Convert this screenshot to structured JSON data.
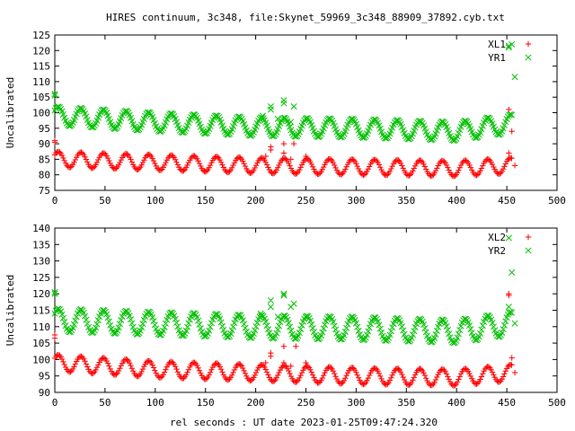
{
  "title": "HIRES continuum, 3c348, file:Skynet_59969_3c348_88909_37892.cyb.txt",
  "xlabel": "rel seconds : UT date 2023-01-25T09:47:24.320",
  "colors": {
    "red": "#ff0000",
    "green": "#00c000"
  },
  "chart_data": [
    {
      "type": "scatter",
      "ylabel": "Uncalibrated",
      "xlim": [
        0,
        500
      ],
      "ylim": [
        75,
        125
      ],
      "xticks": [
        0,
        50,
        100,
        150,
        200,
        250,
        300,
        350,
        400,
        450,
        500
      ],
      "yticks": [
        75,
        80,
        85,
        90,
        95,
        100,
        105,
        110,
        115,
        120,
        125
      ],
      "legend_position": "top-right",
      "series": [
        {
          "name": "XL1",
          "color": "#ff0000",
          "marker": "plus",
          "baseline": [
            [
              0,
              85
            ],
            [
              100,
              84
            ],
            [
              200,
              83
            ],
            [
              300,
              82.5
            ],
            [
              400,
              82
            ],
            [
              455,
              83
            ]
          ],
          "amplitude": 2.5,
          "period_s": 22.5,
          "spikes": [
            [
              0,
              90.5
            ],
            [
              0,
              91
            ],
            [
              210,
              86
            ],
            [
              215,
              88
            ],
            [
              215,
              89
            ],
            [
              228,
              90
            ],
            [
              228,
              87
            ],
            [
              235,
              85
            ],
            [
              238,
              90
            ],
            [
              250,
              86
            ],
            [
              452,
              101
            ],
            [
              452,
              87
            ],
            [
              455,
              94
            ],
            [
              458,
              83
            ]
          ]
        },
        {
          "name": "YR1",
          "color": "#00c000",
          "marker": "x",
          "baseline": [
            [
              0,
              99
            ],
            [
              100,
              97
            ],
            [
              200,
              95.5
            ],
            [
              300,
              95
            ],
            [
              400,
              94
            ],
            [
              455,
              96.5
            ]
          ],
          "amplitude": 3,
          "period_s": 22.5,
          "spikes": [
            [
              0,
              105.5
            ],
            [
              0,
              106
            ],
            [
              207,
              99
            ],
            [
              215,
              101
            ],
            [
              215,
              102
            ],
            [
              222,
              98
            ],
            [
              228,
              103
            ],
            [
              228,
              104
            ],
            [
              235,
              97
            ],
            [
              238,
              102
            ],
            [
              452,
              121
            ],
            [
              452,
              121.5
            ],
            [
              455,
              122
            ],
            [
              458,
              111.5
            ]
          ]
        }
      ]
    },
    {
      "type": "scatter",
      "ylabel": "Uncalibrated",
      "xlim": [
        0,
        500
      ],
      "ylim": [
        90,
        140
      ],
      "xticks": [
        0,
        50,
        100,
        150,
        200,
        250,
        300,
        350,
        400,
        450,
        500
      ],
      "yticks": [
        90,
        95,
        100,
        105,
        110,
        115,
        120,
        125,
        130,
        135,
        140
      ],
      "legend_position": "top-right",
      "series": [
        {
          "name": "XL2",
          "color": "#ff0000",
          "marker": "plus",
          "baseline": [
            [
              0,
              99
            ],
            [
              100,
              97
            ],
            [
              200,
              96
            ],
            [
              300,
              95
            ],
            [
              400,
              94.5
            ],
            [
              455,
              96
            ]
          ],
          "amplitude": 2.5,
          "period_s": 22.5,
          "spikes": [
            [
              0,
              106.5
            ],
            [
              0,
              107.5
            ],
            [
              210,
              99
            ],
            [
              215,
              101
            ],
            [
              215,
              102
            ],
            [
              228,
              104
            ],
            [
              228,
              99
            ],
            [
              235,
              98
            ],
            [
              240,
              104
            ],
            [
              250,
              99
            ],
            [
              452,
              119.5
            ],
            [
              452,
              120
            ],
            [
              455,
              100.5
            ],
            [
              458,
              96
            ]
          ]
        },
        {
          "name": "YR2",
          "color": "#00c000",
          "marker": "x",
          "baseline": [
            [
              0,
              112
            ],
            [
              100,
              111
            ],
            [
              200,
              110
            ],
            [
              300,
              109.5
            ],
            [
              400,
              108.5
            ],
            [
              455,
              111
            ]
          ],
          "amplitude": 3.5,
          "period_s": 22.5,
          "spikes": [
            [
              0,
              120
            ],
            [
              0,
              120.5
            ],
            [
              205,
              114
            ],
            [
              215,
              116
            ],
            [
              215,
              118
            ],
            [
              222,
              113
            ],
            [
              228,
              119.5
            ],
            [
              228,
              120
            ],
            [
              235,
              116
            ],
            [
              238,
              117
            ],
            [
              452,
              137
            ],
            [
              452,
              116
            ],
            [
              455,
              126.5
            ],
            [
              458,
              111
            ]
          ]
        }
      ]
    }
  ]
}
